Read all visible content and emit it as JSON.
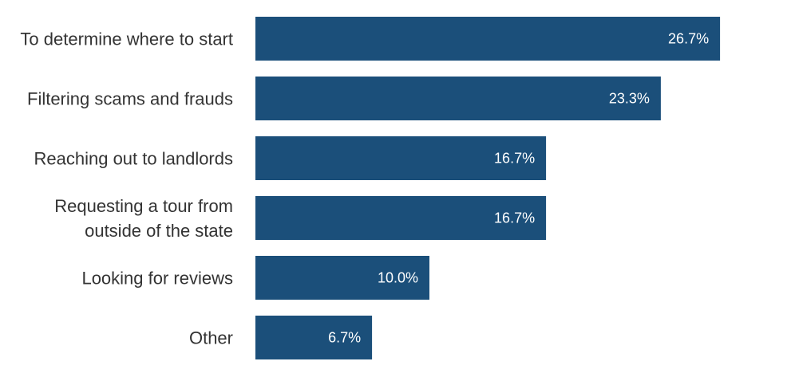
{
  "chart_data": {
    "type": "bar",
    "orientation": "horizontal",
    "categories": [
      [
        "To determine where to start"
      ],
      [
        "Filtering scams and frauds"
      ],
      [
        "Reaching out to landlords"
      ],
      [
        "Requesting a tour from",
        "outside of the state"
      ],
      [
        "Looking for reviews"
      ],
      [
        "Other"
      ]
    ],
    "values": [
      26.7,
      23.3,
      16.7,
      16.7,
      10.0,
      6.7
    ],
    "value_labels": [
      "26.7%",
      "23.3%",
      "16.7%",
      "16.7%",
      "10.0%",
      "6.7%"
    ],
    "xlim": [
      0,
      30
    ],
    "grid": false,
    "legend": "none",
    "bar_color": "#1b4f7a"
  }
}
